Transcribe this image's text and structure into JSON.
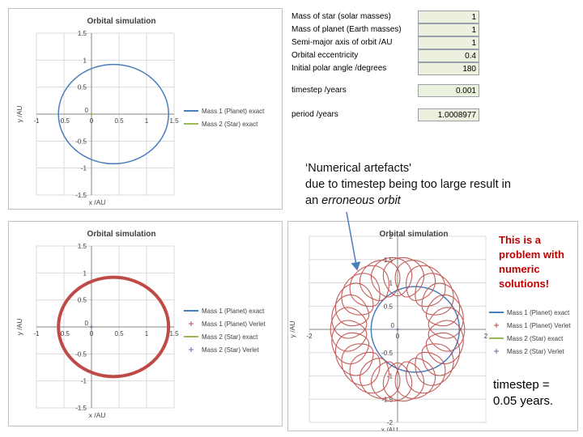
{
  "parameters": {
    "rows": [
      {
        "label": "Mass of star (solar masses)",
        "value": "1"
      },
      {
        "label": "Mass of planet (Earth masses)",
        "value": "1"
      },
      {
        "label": "Semi-major axis of orbit /AU",
        "value": "1"
      },
      {
        "label": "Orbital eccentricity",
        "value": "0.4"
      },
      {
        "label": "Initial polar angle /degrees",
        "value": "180"
      }
    ],
    "timestep_label": "timestep /years",
    "timestep_value": "0.001",
    "period_label": "period /years",
    "period_value": "1.0008977"
  },
  "annotation": {
    "line1": "‘Numerical artefacts'",
    "line2": "due to timestep being too large result in",
    "line3_prefix": "an ",
    "line3_emph": "erroneous orbit"
  },
  "problem_note": "This is a problem with numeric solutions!",
  "timestep_note": "timestep = 0.05 years.",
  "colors": {
    "planet_exact": "#4a7ebb",
    "star_exact": "#98b954",
    "verlet": "#be4b48",
    "star_verlet": "#7e62a1",
    "cell_bg": "#ebf1de",
    "arrow": "#4a7ebb",
    "problem_text": "#c00000"
  },
  "chart_data": [
    {
      "type": "scatter",
      "title": "Orbital simulation",
      "xlabel": "x /AU",
      "ylabel": "y /AU",
      "xlim": [
        -1,
        1.5
      ],
      "ylim": [
        -1.5,
        1.5
      ],
      "xticks": [
        "-1",
        "-0.5",
        "0",
        "0.5",
        "1",
        "1.5"
      ],
      "yticks": [
        "1.5",
        "1",
        "0.5",
        "0",
        "-0.5",
        "-1",
        "-1.5"
      ],
      "legend_position": "right",
      "series": [
        {
          "name": "Mass 1 (Planet) exact",
          "orbit": {
            "center_x": 0.4,
            "center_y": 0,
            "rx": 1.0,
            "ry": 0.92
          }
        },
        {
          "name": "Mass 2 (Star) exact",
          "points": [
            [
              0,
              0
            ]
          ]
        }
      ]
    },
    {
      "type": "scatter",
      "title": "Orbital simulation",
      "xlabel": "x /AU",
      "ylabel": "y /AU",
      "xlim": [
        -1,
        1.5
      ],
      "ylim": [
        -1.5,
        1.5
      ],
      "xticks": [
        "-1",
        "-0.5",
        "0",
        "0.5",
        "1",
        "1.5"
      ],
      "yticks": [
        "1.5",
        "1",
        "0.5",
        "0",
        "-0.5",
        "-1",
        "-1.5"
      ],
      "legend_position": "right",
      "series": [
        {
          "name": "Mass 1 (Planet) exact",
          "orbit": {
            "center_x": 0.4,
            "center_y": 0,
            "rx": 1.0,
            "ry": 0.92
          }
        },
        {
          "name": "Mass 1 (Planet) Verlet",
          "orbit": {
            "center_x": 0.4,
            "center_y": 0,
            "rx": 1.0,
            "ry": 0.92
          }
        },
        {
          "name": "Mass 2 (Star) exact",
          "points": [
            [
              0,
              0
            ]
          ]
        },
        {
          "name": "Mass 2 (Star) Verlet",
          "points": [
            [
              0,
              0
            ]
          ]
        }
      ]
    },
    {
      "type": "scatter",
      "title": "Orbital simulation",
      "xlabel": "x /AU",
      "ylabel": "y /AU",
      "xlim": [
        -2,
        2
      ],
      "ylim": [
        -2,
        2
      ],
      "xticks": [
        "-2",
        "0",
        "2"
      ],
      "yticks": [
        "2",
        "1.5",
        "1",
        "0.5",
        "0",
        "-0.5",
        "-1",
        "-1.5",
        "-2"
      ],
      "legend_position": "right",
      "series": [
        {
          "name": "Mass 1 (Planet) exact",
          "orbit": {
            "center_x": 0.4,
            "center_y": 0,
            "rx": 1.0,
            "ry": 0.92
          }
        },
        {
          "name": "Mass 1 (Planet) Verlet",
          "precessing_orbit": {
            "outer_radius": 1.55,
            "inner_radius": 0.72,
            "loops": 26
          }
        },
        {
          "name": "Mass 2 (Star) exact",
          "points": [
            [
              0,
              0
            ]
          ]
        },
        {
          "name": "Mass 2 (Star) Verlet",
          "points": [
            [
              0,
              0
            ]
          ]
        }
      ]
    }
  ]
}
